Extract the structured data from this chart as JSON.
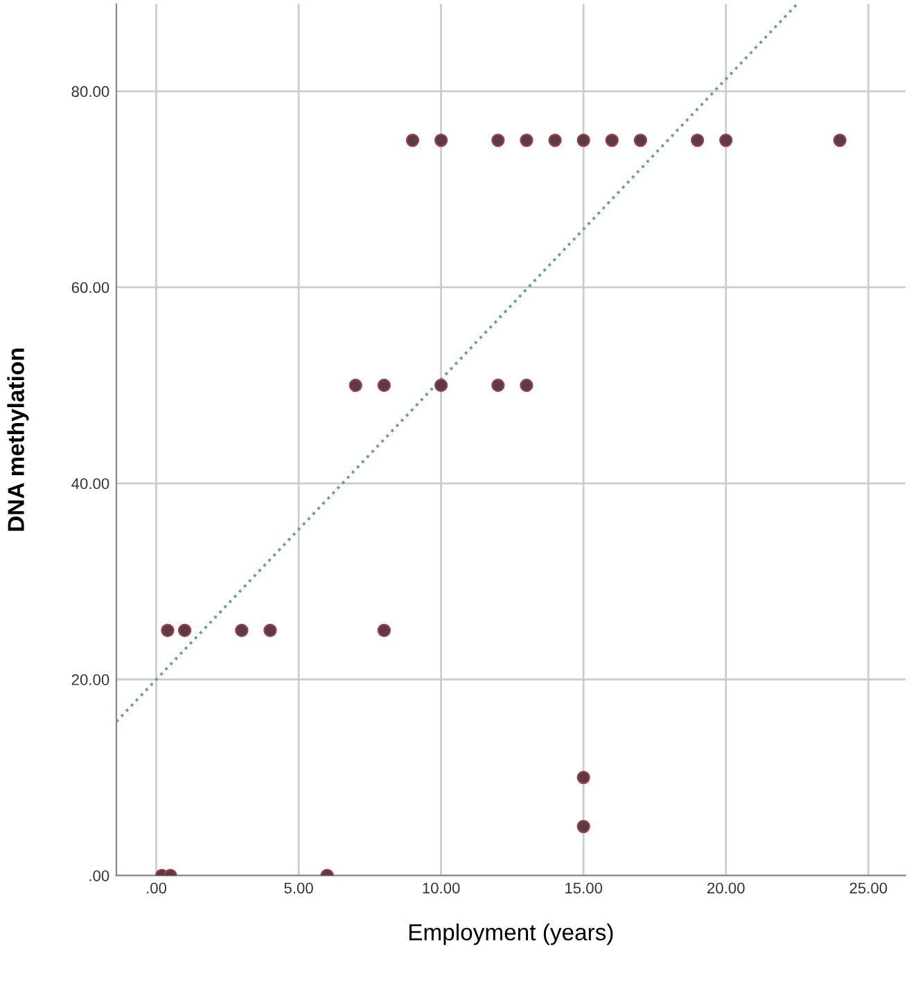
{
  "chart_data": {
    "type": "scatter",
    "xlabel": "Employment (years)",
    "ylabel": "DNA methylation",
    "xlim": [
      -1.4,
      26.3
    ],
    "ylim": [
      0,
      88.9
    ],
    "xticks": [
      {
        "value": 0,
        "label": ".00"
      },
      {
        "value": 5,
        "label": "5.00"
      },
      {
        "value": 10,
        "label": "10.00"
      },
      {
        "value": 15,
        "label": "15.00"
      },
      {
        "value": 20,
        "label": "20.00"
      },
      {
        "value": 25,
        "label": "25.00"
      }
    ],
    "yticks": [
      {
        "value": 0,
        "label": ".00"
      },
      {
        "value": 20,
        "label": "20.00"
      },
      {
        "value": 40,
        "label": "40.00"
      },
      {
        "value": 60,
        "label": "60.00"
      },
      {
        "value": 80,
        "label": "80.00"
      }
    ],
    "grid": true,
    "series": [
      {
        "marker": "circle",
        "color": "#5e3a42",
        "x": [
          9,
          10,
          12,
          13,
          14,
          15,
          16,
          17,
          19,
          20,
          24,
          7,
          8,
          10,
          12,
          13,
          0.4,
          1,
          3,
          4,
          8,
          15,
          15,
          0.2,
          0.5,
          6
        ],
        "values": [
          75,
          75,
          75,
          75,
          75,
          75,
          75,
          75,
          75,
          75,
          75,
          50,
          50,
          50,
          50,
          50,
          25,
          25,
          25,
          25,
          25,
          10,
          5,
          0,
          0,
          0
        ]
      },
      {
        "type": "line",
        "color": "#6a9ea0",
        "line_style": "dotted",
        "x": [
          -1.4,
          22.5
        ],
        "values": [
          15.7,
          88.9
        ]
      }
    ]
  }
}
